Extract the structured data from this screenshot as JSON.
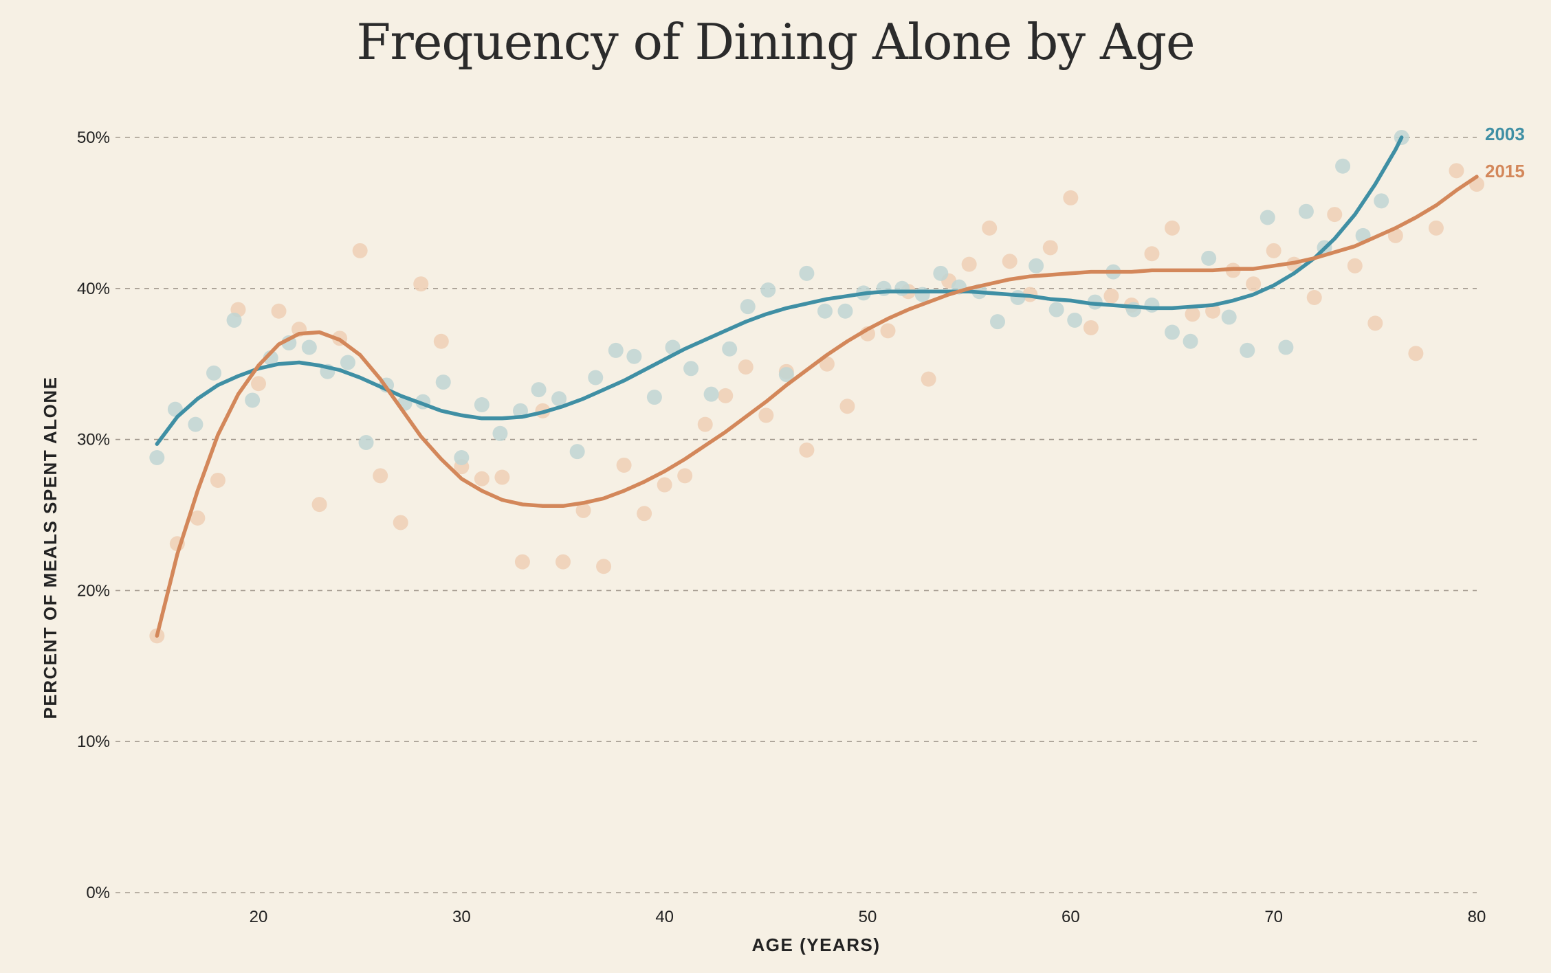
{
  "chart_data": {
    "type": "scatter",
    "title": "Frequency of Dining Alone by Age",
    "xlabel": "AGE (YEARS)",
    "ylabel": "PERCENT OF MEALS SPENT ALONE",
    "xlim": [
      12.5,
      80
    ],
    "ylim": [
      0,
      50
    ],
    "x_ticks": [
      20,
      30,
      40,
      50,
      60,
      70,
      80
    ],
    "x_tick_labels": [
      "20",
      "30",
      "40",
      "50",
      "60",
      "70",
      "80"
    ],
    "y_ticks": [
      0,
      10,
      20,
      30,
      40,
      50
    ],
    "y_tick_labels": [
      "0%",
      "10%",
      "20%",
      "30%",
      "40%",
      "50%"
    ],
    "grid": "horizontal dashed",
    "legend": "inline labels at right end of each trend line",
    "series": [
      {
        "name": "2003",
        "color": "#3f8fa4",
        "point_color": "#bfd5d3",
        "points": [
          [
            15,
            28.8
          ],
          [
            15.9,
            32
          ],
          [
            16.9,
            31
          ],
          [
            17.8,
            34.4
          ],
          [
            18.8,
            37.9
          ],
          [
            19.7,
            32.6
          ],
          [
            20.6,
            35.4
          ],
          [
            21.5,
            36.4
          ],
          [
            22.5,
            36.1
          ],
          [
            23.4,
            34.5
          ],
          [
            24.4,
            35.1
          ],
          [
            25.3,
            29.8
          ],
          [
            26.3,
            33.6
          ],
          [
            27.2,
            32.4
          ],
          [
            28.1,
            32.5
          ],
          [
            29.1,
            33.8
          ],
          [
            30,
            28.8
          ],
          [
            31,
            32.3
          ],
          [
            31.9,
            30.4
          ],
          [
            32.9,
            31.9
          ],
          [
            33.8,
            33.3
          ],
          [
            34.8,
            32.7
          ],
          [
            35.7,
            29.2
          ],
          [
            36.6,
            34.1
          ],
          [
            37.6,
            35.9
          ],
          [
            38.5,
            35.5
          ],
          [
            39.5,
            32.8
          ],
          [
            40.4,
            36.1
          ],
          [
            41.3,
            34.7
          ],
          [
            42.3,
            33
          ],
          [
            43.2,
            36
          ],
          [
            44.1,
            38.8
          ],
          [
            45.1,
            39.9
          ],
          [
            46,
            34.3
          ],
          [
            47,
            41
          ],
          [
            47.9,
            38.5
          ],
          [
            48.9,
            38.5
          ],
          [
            49.8,
            39.7
          ],
          [
            50.8,
            40
          ],
          [
            51.7,
            40
          ],
          [
            52.7,
            39.6
          ],
          [
            53.6,
            41
          ],
          [
            54.5,
            40.1
          ],
          [
            55.5,
            39.8
          ],
          [
            56.4,
            37.8
          ],
          [
            57.4,
            39.4
          ],
          [
            58.3,
            41.5
          ],
          [
            59.3,
            38.6
          ],
          [
            60.2,
            37.9
          ],
          [
            61.2,
            39.1
          ],
          [
            62.1,
            41.1
          ],
          [
            63.1,
            38.6
          ],
          [
            64,
            38.9
          ],
          [
            65,
            37.1
          ],
          [
            65.9,
            36.5
          ],
          [
            66.8,
            42
          ],
          [
            67.8,
            38.1
          ],
          [
            68.7,
            35.9
          ],
          [
            69.7,
            44.7
          ],
          [
            70.6,
            36.1
          ],
          [
            71.6,
            45.1
          ],
          [
            72.5,
            42.7
          ],
          [
            73.4,
            48.1
          ],
          [
            74.4,
            43.5
          ],
          [
            75.3,
            45.8
          ],
          [
            76.3,
            50
          ]
        ],
        "trend": [
          [
            15,
            29.7
          ],
          [
            16,
            31.5
          ],
          [
            17,
            32.7
          ],
          [
            18,
            33.6
          ],
          [
            19,
            34.2
          ],
          [
            20,
            34.7
          ],
          [
            21,
            35
          ],
          [
            22,
            35.1
          ],
          [
            23,
            34.9
          ],
          [
            24,
            34.6
          ],
          [
            25,
            34.1
          ],
          [
            26,
            33.5
          ],
          [
            27,
            32.9
          ],
          [
            28,
            32.4
          ],
          [
            29,
            31.9
          ],
          [
            30,
            31.6
          ],
          [
            31,
            31.4
          ],
          [
            32,
            31.4
          ],
          [
            33,
            31.5
          ],
          [
            34,
            31.8
          ],
          [
            35,
            32.2
          ],
          [
            36,
            32.7
          ],
          [
            37,
            33.3
          ],
          [
            38,
            33.9
          ],
          [
            39,
            34.6
          ],
          [
            40,
            35.3
          ],
          [
            41,
            36
          ],
          [
            42,
            36.6
          ],
          [
            43,
            37.2
          ],
          [
            44,
            37.8
          ],
          [
            45,
            38.3
          ],
          [
            46,
            38.7
          ],
          [
            47,
            39
          ],
          [
            48,
            39.3
          ],
          [
            49,
            39.5
          ],
          [
            50,
            39.7
          ],
          [
            51,
            39.8
          ],
          [
            52,
            39.8
          ],
          [
            53,
            39.8
          ],
          [
            54,
            39.8
          ],
          [
            55,
            39.8
          ],
          [
            56,
            39.7
          ],
          [
            57,
            39.6
          ],
          [
            58,
            39.5
          ],
          [
            59,
            39.3
          ],
          [
            60,
            39.2
          ],
          [
            61,
            39
          ],
          [
            62,
            38.9
          ],
          [
            63,
            38.8
          ],
          [
            64,
            38.7
          ],
          [
            65,
            38.7
          ],
          [
            66,
            38.8
          ],
          [
            67,
            38.9
          ],
          [
            68,
            39.2
          ],
          [
            69,
            39.6
          ],
          [
            70,
            40.2
          ],
          [
            71,
            41
          ],
          [
            72,
            42
          ],
          [
            73,
            43.3
          ],
          [
            74,
            44.9
          ],
          [
            75,
            46.9
          ],
          [
            76,
            49.2
          ],
          [
            76.3,
            50
          ]
        ]
      },
      {
        "name": "2015",
        "color": "#d3875a",
        "point_color": "#efcfb5",
        "points": [
          [
            15,
            17
          ],
          [
            16,
            23.1
          ],
          [
            17,
            24.8
          ],
          [
            18,
            27.3
          ],
          [
            19,
            38.6
          ],
          [
            20,
            33.7
          ],
          [
            21,
            38.5
          ],
          [
            22,
            37.3
          ],
          [
            23,
            25.7
          ],
          [
            24,
            36.7
          ],
          [
            25,
            42.5
          ],
          [
            26,
            27.6
          ],
          [
            27,
            24.5
          ],
          [
            28,
            40.3
          ],
          [
            29,
            36.5
          ],
          [
            30,
            28.2
          ],
          [
            31,
            27.4
          ],
          [
            32,
            27.5
          ],
          [
            33,
            21.9
          ],
          [
            34,
            31.9
          ],
          [
            35,
            21.9
          ],
          [
            36,
            25.3
          ],
          [
            37,
            21.6
          ],
          [
            38,
            28.3
          ],
          [
            39,
            25.1
          ],
          [
            40,
            27
          ],
          [
            41,
            27.6
          ],
          [
            42,
            31
          ],
          [
            43,
            32.9
          ],
          [
            44,
            34.8
          ],
          [
            45,
            31.6
          ],
          [
            46,
            34.5
          ],
          [
            47,
            29.3
          ],
          [
            48,
            35
          ],
          [
            49,
            32.2
          ],
          [
            50,
            37
          ],
          [
            51,
            37.2
          ],
          [
            52,
            39.8
          ],
          [
            53,
            34
          ],
          [
            54,
            40.5
          ],
          [
            55,
            41.6
          ],
          [
            56,
            44
          ],
          [
            57,
            41.8
          ],
          [
            58,
            39.6
          ],
          [
            59,
            42.7
          ],
          [
            60,
            46
          ],
          [
            61,
            37.4
          ],
          [
            62,
            39.5
          ],
          [
            63,
            38.9
          ],
          [
            64,
            42.3
          ],
          [
            65,
            44
          ],
          [
            66,
            38.3
          ],
          [
            67,
            38.5
          ],
          [
            68,
            41.2
          ],
          [
            69,
            40.3
          ],
          [
            70,
            42.5
          ],
          [
            71,
            41.6
          ],
          [
            72,
            39.4
          ],
          [
            73,
            44.9
          ],
          [
            74,
            41.5
          ],
          [
            75,
            37.7
          ],
          [
            76,
            43.5
          ],
          [
            77,
            35.7
          ],
          [
            78,
            44
          ],
          [
            79,
            47.8
          ],
          [
            80,
            46.9
          ]
        ],
        "trend": [
          [
            15,
            17
          ],
          [
            16,
            22.4
          ],
          [
            17,
            26.6
          ],
          [
            18,
            30.3
          ],
          [
            19,
            33
          ],
          [
            20,
            34.9
          ],
          [
            21,
            36.3
          ],
          [
            22,
            37
          ],
          [
            23,
            37.1
          ],
          [
            24,
            36.6
          ],
          [
            25,
            35.6
          ],
          [
            26,
            34
          ],
          [
            27,
            32.1
          ],
          [
            28,
            30.2
          ],
          [
            29,
            28.7
          ],
          [
            30,
            27.4
          ],
          [
            31,
            26.6
          ],
          [
            32,
            26
          ],
          [
            33,
            25.7
          ],
          [
            34,
            25.6
          ],
          [
            35,
            25.6
          ],
          [
            36,
            25.8
          ],
          [
            37,
            26.1
          ],
          [
            38,
            26.6
          ],
          [
            39,
            27.2
          ],
          [
            40,
            27.9
          ],
          [
            41,
            28.7
          ],
          [
            42,
            29.6
          ],
          [
            43,
            30.5
          ],
          [
            44,
            31.5
          ],
          [
            45,
            32.5
          ],
          [
            46,
            33.6
          ],
          [
            47,
            34.6
          ],
          [
            48,
            35.6
          ],
          [
            49,
            36.5
          ],
          [
            50,
            37.3
          ],
          [
            51,
            38
          ],
          [
            52,
            38.6
          ],
          [
            53,
            39.1
          ],
          [
            54,
            39.6
          ],
          [
            55,
            40
          ],
          [
            56,
            40.3
          ],
          [
            57,
            40.6
          ],
          [
            58,
            40.8
          ],
          [
            59,
            40.9
          ],
          [
            60,
            41
          ],
          [
            61,
            41.1
          ],
          [
            62,
            41.1
          ],
          [
            63,
            41.1
          ],
          [
            64,
            41.2
          ],
          [
            65,
            41.2
          ],
          [
            66,
            41.2
          ],
          [
            67,
            41.2
          ],
          [
            68,
            41.3
          ],
          [
            69,
            41.3
          ],
          [
            70,
            41.5
          ],
          [
            71,
            41.7
          ],
          [
            72,
            42
          ],
          [
            73,
            42.4
          ],
          [
            74,
            42.8
          ],
          [
            75,
            43.4
          ],
          [
            76,
            44
          ],
          [
            77,
            44.7
          ],
          [
            78,
            45.5
          ],
          [
            79,
            46.5
          ],
          [
            80,
            47.4
          ]
        ]
      }
    ]
  }
}
